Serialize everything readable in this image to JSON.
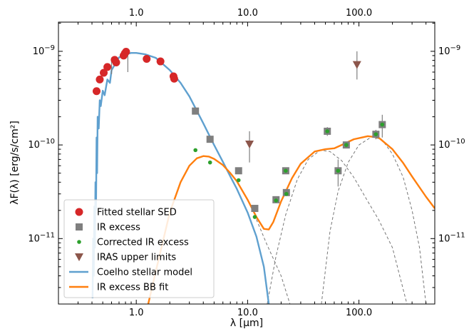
{
  "chart_data": {
    "type": "scatter",
    "xlabel": "λ [μm]",
    "ylabel": "λF(λ) [erg/s/cm²]",
    "xscale": "log",
    "yscale": "log",
    "xlim": [
      0.2,
      480
    ],
    "ylim": [
      2e-12,
      2.05e-09
    ],
    "grid": false,
    "legend_position": "lower-left",
    "x_tick_labels": [
      {
        "value": 1.0,
        "label": "1.0"
      },
      {
        "value": 10.0,
        "label": "10.0"
      },
      {
        "value": 100.0,
        "label": "100.0"
      }
    ],
    "y_tick_labels": [
      {
        "value": 1e-11,
        "base": "10",
        "exp": "−11"
      },
      {
        "value": 1e-10,
        "base": "10",
        "exp": "−10"
      },
      {
        "value": 1e-09,
        "base": "10",
        "exp": "−9"
      }
    ],
    "colors": {
      "fitted": "#d62728",
      "ir_excess": "#7f7f7f",
      "corrected": "#2ca02c",
      "iras": "#8c564b",
      "coelho": "#5fa0cf",
      "bb_fit": "#ff7f0e",
      "bb_component": "#777777"
    },
    "series": [
      {
        "name": "Fitted stellar SED",
        "kind": "circle",
        "color_key": "fitted",
        "points": [
          {
            "x": 0.44,
            "y": 3.75e-10,
            "err": 2.5e-11
          },
          {
            "x": 0.47,
            "y": 5e-10,
            "err": 3e-11
          },
          {
            "x": 0.51,
            "y": 5.9e-10,
            "err": 3e-11
          },
          {
            "x": 0.55,
            "y": 6.8e-10,
            "err": 4e-11
          },
          {
            "x": 0.64,
            "y": 8.1e-10,
            "err": 5e-11
          },
          {
            "x": 0.66,
            "y": 7.6e-10,
            "err": 5e-11
          },
          {
            "x": 0.77,
            "y": 9e-10,
            "err": 6e-11
          },
          {
            "x": 0.79,
            "y": 9.5e-10,
            "err": 6e-11
          },
          {
            "x": 0.81,
            "y": 9.9e-10,
            "err": 6e-11
          },
          {
            "x": 1.24,
            "y": 8.3e-10,
            "err": 5e-11
          },
          {
            "x": 1.65,
            "y": 7.8e-10,
            "err": 5e-11
          },
          {
            "x": 2.16,
            "y": 5.4e-10,
            "err": 4e-11
          },
          {
            "x": 2.19,
            "y": 5.1e-10,
            "err": 4e-11
          }
        ],
        "spike_errors": [
          {
            "x": 0.6,
            "y": 7.2e-10,
            "lo": 5.7e-10,
            "hi": 8.6e-10
          },
          {
            "x": 0.84,
            "y": 8.8e-10,
            "lo": 6e-10,
            "hi": 1e-09
          }
        ]
      },
      {
        "name": "IR excess",
        "kind": "square",
        "color_key": "ir_excess",
        "points": [
          {
            "x": 3.4,
            "y": 2.3e-10
          },
          {
            "x": 4.6,
            "y": 1.15e-10
          },
          {
            "x": 8.3,
            "y": 5.3e-11
          },
          {
            "x": 11.6,
            "y": 2.1e-11
          },
          {
            "x": 18.0,
            "y": 2.6e-11
          },
          {
            "x": 22.0,
            "y": 5.3e-11
          },
          {
            "x": 22.3,
            "y": 3.1e-11
          },
          {
            "x": 52.0,
            "y": 1.4e-10,
            "err_lo": 1.25e-10,
            "err_hi": 1.55e-10
          },
          {
            "x": 65.0,
            "y": 5.3e-11,
            "err_lo": 3.6e-11,
            "err_hi": 7e-11
          },
          {
            "x": 77.0,
            "y": 1e-10
          },
          {
            "x": 142.0,
            "y": 1.3e-10,
            "err_lo": 1.15e-10,
            "err_hi": 1.45e-10
          },
          {
            "x": 162.0,
            "y": 1.65e-10,
            "err_lo": 1.2e-10,
            "err_hi": 2.1e-10
          }
        ]
      },
      {
        "name": "Corrected IR excess",
        "kind": "dot",
        "color_key": "corrected",
        "points": [
          {
            "x": 3.4,
            "y": 8.8e-11
          },
          {
            "x": 4.6,
            "y": 6.5e-11
          },
          {
            "x": 8.3,
            "y": 4.2e-11
          },
          {
            "x": 11.6,
            "y": 1.7e-11
          },
          {
            "x": 18.0,
            "y": 2.55e-11
          },
          {
            "x": 22.0,
            "y": 5.3e-11
          },
          {
            "x": 22.3,
            "y": 3e-11
          },
          {
            "x": 52.0,
            "y": 1.4e-10
          },
          {
            "x": 65.0,
            "y": 5.3e-11
          },
          {
            "x": 77.0,
            "y": 1e-10
          },
          {
            "x": 142.0,
            "y": 1.3e-10
          },
          {
            "x": 162.0,
            "y": 1.65e-10
          }
        ]
      },
      {
        "name": "IRAS upper limits",
        "kind": "triangle-down",
        "color_key": "iras",
        "points": [
          {
            "x": 10.4,
            "y": 1.02e-10,
            "err_lo": 6.5e-11,
            "err_hi": 1.4e-10
          },
          {
            "x": 96.0,
            "y": 7.2e-10,
            "err_lo": 5e-10,
            "err_hi": 1e-09
          }
        ]
      },
      {
        "name": "Coelho stellar model",
        "kind": "line",
        "color_key": "coelho",
        "points": [
          {
            "x": 0.405,
            "y": 2.3e-12
          },
          {
            "x": 0.41,
            "y": 1e-11
          },
          {
            "x": 0.415,
            "y": 4e-12
          },
          {
            "x": 0.42,
            "y": 2.2e-11
          },
          {
            "x": 0.425,
            "y": 8e-12
          },
          {
            "x": 0.43,
            "y": 4e-11
          },
          {
            "x": 0.435,
            "y": 2e-11
          },
          {
            "x": 0.44,
            "y": 1.2e-10
          },
          {
            "x": 0.445,
            "y": 5e-11
          },
          {
            "x": 0.45,
            "y": 2e-10
          },
          {
            "x": 0.46,
            "y": 1.5e-10
          },
          {
            "x": 0.47,
            "y": 3e-10
          },
          {
            "x": 0.48,
            "y": 2.6e-10
          },
          {
            "x": 0.5,
            "y": 3.8e-10
          },
          {
            "x": 0.52,
            "y": 3.4e-10
          },
          {
            "x": 0.55,
            "y": 5e-10
          },
          {
            "x": 0.58,
            "y": 4.6e-10
          },
          {
            "x": 0.6,
            "y": 6.3e-10
          },
          {
            "x": 0.65,
            "y": 7.4e-10
          },
          {
            "x": 0.7,
            "y": 8.6e-10
          },
          {
            "x": 0.8,
            "y": 9.3e-10
          },
          {
            "x": 0.9,
            "y": 9.6e-10
          },
          {
            "x": 1.0,
            "y": 9.6e-10
          },
          {
            "x": 1.2,
            "y": 9.3e-10
          },
          {
            "x": 1.5,
            "y": 8.5e-10
          },
          {
            "x": 2.0,
            "y": 6.3e-10
          },
          {
            "x": 2.5,
            "y": 4.6e-10
          },
          {
            "x": 3.0,
            "y": 3.3e-10
          },
          {
            "x": 4.0,
            "y": 1.7e-10
          },
          {
            "x": 5.0,
            "y": 1e-10
          },
          {
            "x": 6.0,
            "y": 6.6e-11
          },
          {
            "x": 7.0,
            "y": 4.6e-11
          },
          {
            "x": 8.0,
            "y": 3.4e-11
          },
          {
            "x": 10.0,
            "y": 1.9e-11
          },
          {
            "x": 12.0,
            "y": 1.05e-11
          },
          {
            "x": 14.0,
            "y": 5e-12
          },
          {
            "x": 15.5,
            "y": 2e-12
          }
        ]
      },
      {
        "name": "IR excess BB fit",
        "kind": "line",
        "color_key": "bb_fit",
        "points": [
          {
            "x": 1.28,
            "y": 2e-12
          },
          {
            "x": 1.5,
            "y": 4.5e-12
          },
          {
            "x": 2.0,
            "y": 1.9e-11
          },
          {
            "x": 2.5,
            "y": 4e-11
          },
          {
            "x": 3.0,
            "y": 6e-11
          },
          {
            "x": 3.5,
            "y": 7.2e-11
          },
          {
            "x": 4.0,
            "y": 7.6e-11
          },
          {
            "x": 4.5,
            "y": 7.5e-11
          },
          {
            "x": 5.0,
            "y": 7.1e-11
          },
          {
            "x": 6.0,
            "y": 6.1e-11
          },
          {
            "x": 7.0,
            "y": 5e-11
          },
          {
            "x": 8.0,
            "y": 4.1e-11
          },
          {
            "x": 10.0,
            "y": 2.6e-11
          },
          {
            "x": 12.0,
            "y": 1.7e-11
          },
          {
            "x": 14.0,
            "y": 1.27e-11
          },
          {
            "x": 15.5,
            "y": 1.25e-11
          },
          {
            "x": 17.0,
            "y": 1.5e-11
          },
          {
            "x": 20.0,
            "y": 2.5e-11
          },
          {
            "x": 25.0,
            "y": 4.4e-11
          },
          {
            "x": 30.0,
            "y": 6.3e-11
          },
          {
            "x": 40.0,
            "y": 8.5e-11
          },
          {
            "x": 50.0,
            "y": 9e-11
          },
          {
            "x": 60.0,
            "y": 9.2e-11
          },
          {
            "x": 70.0,
            "y": 1e-10
          },
          {
            "x": 90.0,
            "y": 1.15e-10
          },
          {
            "x": 120.0,
            "y": 1.24e-10
          },
          {
            "x": 150.0,
            "y": 1.2e-10
          },
          {
            "x": 200.0,
            "y": 9e-11
          },
          {
            "x": 250.0,
            "y": 6.4e-11
          },
          {
            "x": 300.0,
            "y": 4.6e-11
          },
          {
            "x": 400.0,
            "y": 2.8e-11
          },
          {
            "x": 480.0,
            "y": 2.1e-11
          }
        ]
      },
      {
        "kind": "dashed",
        "color_key": "bb_component",
        "points": [
          {
            "x": 12.0,
            "y": 1.6e-11
          },
          {
            "x": 15.0,
            "y": 8.5e-12
          },
          {
            "x": 20.0,
            "y": 4e-12
          },
          {
            "x": 24.0,
            "y": 2e-12
          }
        ]
      },
      {
        "kind": "dashed",
        "color_key": "bb_component",
        "points": [
          {
            "x": 15.0,
            "y": 2e-12
          },
          {
            "x": 18.0,
            "y": 6.5e-12
          },
          {
            "x": 22.0,
            "y": 1.8e-11
          },
          {
            "x": 28.0,
            "y": 4.3e-11
          },
          {
            "x": 35.0,
            "y": 7e-11
          },
          {
            "x": 45.0,
            "y": 8.8e-11
          },
          {
            "x": 55.0,
            "y": 8.5e-11
          },
          {
            "x": 70.0,
            "y": 6.8e-11
          },
          {
            "x": 90.0,
            "y": 4.5e-11
          },
          {
            "x": 120.0,
            "y": 2.5e-11
          },
          {
            "x": 150.0,
            "y": 1.6e-11
          },
          {
            "x": 200.0,
            "y": 8e-12
          },
          {
            "x": 270.0,
            "y": 2e-12
          }
        ]
      },
      {
        "kind": "dashed",
        "color_key": "bb_component",
        "points": [
          {
            "x": 46.0,
            "y": 2e-12
          },
          {
            "x": 55.0,
            "y": 1.2e-11
          },
          {
            "x": 65.0,
            "y": 3.2e-11
          },
          {
            "x": 80.0,
            "y": 6.5e-11
          },
          {
            "x": 100.0,
            "y": 1e-10
          },
          {
            "x": 130.0,
            "y": 1.22e-10
          },
          {
            "x": 160.0,
            "y": 1.15e-10
          },
          {
            "x": 200.0,
            "y": 8e-11
          },
          {
            "x": 250.0,
            "y": 4.5e-11
          },
          {
            "x": 300.0,
            "y": 2e-11
          },
          {
            "x": 350.0,
            "y": 8e-12
          },
          {
            "x": 400.0,
            "y": 2e-12
          }
        ]
      }
    ],
    "legend": [
      {
        "label": "Fitted stellar SED",
        "kind": "circle",
        "color_key": "fitted"
      },
      {
        "label": "IR excess",
        "kind": "square",
        "color_key": "ir_excess"
      },
      {
        "label": "Corrected IR excess",
        "kind": "dot",
        "color_key": "corrected"
      },
      {
        "label": "IRAS upper limits",
        "kind": "triangle-down",
        "color_key": "iras"
      },
      {
        "label": "Coelho stellar model",
        "kind": "line",
        "color_key": "coelho"
      },
      {
        "label": "IR excess BB fit",
        "kind": "line",
        "color_key": "bb_fit"
      }
    ]
  }
}
